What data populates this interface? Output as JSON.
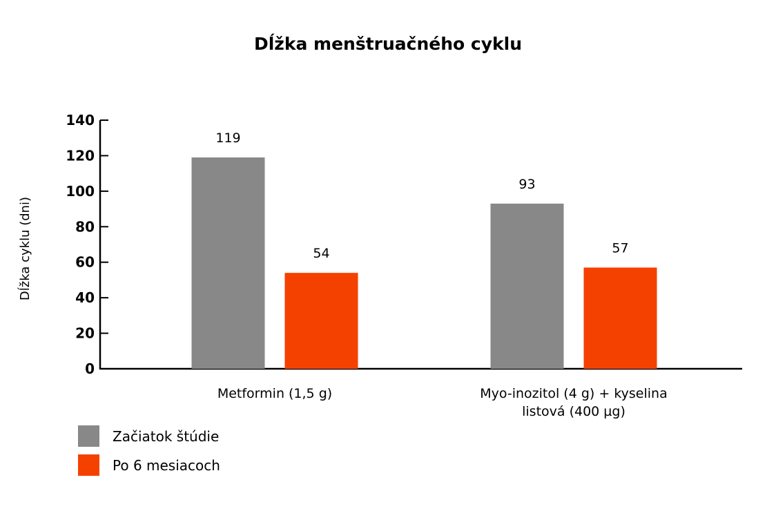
{
  "chart_data": {
    "type": "bar",
    "title": "Dĺžka menštruačného cyklu",
    "xlabel": "",
    "ylabel": "Dĺžka cyklu (dni)",
    "ylim": [
      0,
      140
    ],
    "yticks": [
      0,
      20,
      40,
      60,
      80,
      100,
      120,
      140
    ],
    "grid": false,
    "legend_position": "bottom-left",
    "categories": [
      [
        "Metformin (1,5 g)"
      ],
      [
        "Myo-inozitol (4 g) + kyselina",
        "listová (400 µg)"
      ]
    ],
    "series": [
      {
        "name": "Začiatok štúdie",
        "values": [
          119,
          93
        ],
        "color": "#888888"
      },
      {
        "name": "Po 6 mesiacoch",
        "values": [
          54,
          57
        ],
        "color": "#F54100"
      }
    ]
  }
}
